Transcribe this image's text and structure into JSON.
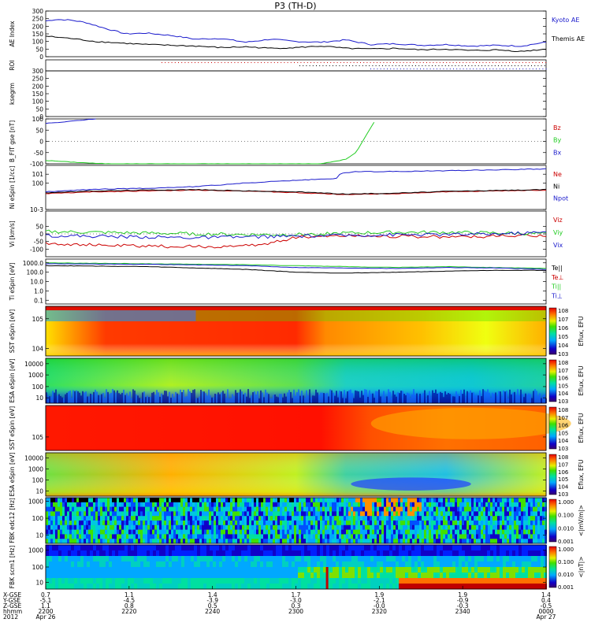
{
  "title": "P3 (TH-D)",
  "chart_data": [
    {
      "type": "line",
      "ylabel": "AE Index",
      "ylim": [
        0,
        300
      ],
      "yticks": [
        0,
        50,
        100,
        150,
        200,
        250,
        300
      ],
      "series": [
        {
          "name": "Kyoto AE",
          "color": "#1a1acc",
          "x": [
            0,
            0.02,
            0.05,
            0.08,
            0.12,
            0.16,
            0.2,
            0.25,
            0.3,
            0.35,
            0.4,
            0.45,
            0.5,
            0.55,
            0.6,
            0.65,
            0.7,
            0.75,
            0.8,
            0.85,
            0.9,
            0.95,
            1.0
          ],
          "values": [
            235,
            245,
            240,
            225,
            185,
            150,
            155,
            140,
            115,
            120,
            95,
            115,
            100,
            95,
            110,
            80,
            85,
            75,
            80,
            70,
            75,
            70,
            95
          ]
        },
        {
          "name": "Themis AE",
          "color": "#000000",
          "x": [
            0,
            0.05,
            0.1,
            0.15,
            0.2,
            0.25,
            0.3,
            0.35,
            0.4,
            0.45,
            0.5,
            0.55,
            0.6,
            0.65,
            0.7,
            0.75,
            0.8,
            0.85,
            0.9,
            0.95,
            1.0
          ],
          "values": [
            135,
            120,
            100,
            90,
            80,
            75,
            70,
            60,
            65,
            55,
            60,
            70,
            55,
            50,
            55,
            45,
            50,
            40,
            45,
            35,
            50
          ]
        }
      ]
    },
    {
      "type": "scatter",
      "ylabel": "ROI",
      "yticks": []
    },
    {
      "type": "line",
      "ylabel": "ksegrm",
      "ylim": [
        0,
        300
      ],
      "yticks": [
        0,
        50,
        100,
        150,
        200,
        250,
        300
      ],
      "series": []
    },
    {
      "type": "line",
      "ylabel": "B_FIT gse [nT]",
      "ylim": [
        -100,
        100
      ],
      "yticks": [
        -100,
        -50,
        0,
        50,
        100
      ],
      "series": [
        {
          "name": "Bz",
          "color": "#cc0000",
          "x": [],
          "values": []
        },
        {
          "name": "By",
          "color": "#22cc22",
          "x": [
            0,
            0.05,
            0.1,
            0.13,
            0.2,
            0.4,
            0.5,
            0.55,
            0.6,
            0.62,
            0.66
          ],
          "values": [
            -85,
            -92,
            -98,
            -100,
            -100,
            -100,
            -100,
            -100,
            -80,
            -50,
            100
          ]
        },
        {
          "name": "Bx",
          "color": "#1a1acc",
          "x": [
            0,
            0.03,
            0.06,
            0.1
          ],
          "values": [
            80,
            85,
            92,
            100
          ]
        }
      ]
    },
    {
      "type": "line",
      "ylabel": "Ni eSpin [1/cc]",
      "ylim": [
        -3,
        2
      ],
      "log": true,
      "ytick_labels": [
        "10^-3",
        "10^0",
        "10^1"
      ],
      "series": [
        {
          "name": "Ne",
          "color": "#cc0000",
          "x": [
            0,
            0.1,
            0.2,
            0.3,
            0.4,
            0.5,
            0.6,
            0.7,
            0.8,
            0.9,
            1.0
          ],
          "values": [
            -1.2,
            -1.0,
            -0.9,
            -0.8,
            -0.9,
            -1.1,
            -1.3,
            -1.2,
            -1.0,
            -0.9,
            -0.8
          ]
        },
        {
          "name": "Ni",
          "color": "#000000",
          "x": [
            0,
            0.1,
            0.2,
            0.3,
            0.4,
            0.5,
            0.6,
            0.7,
            0.8,
            0.9,
            1.0
          ],
          "values": [
            -1.1,
            -0.9,
            -0.8,
            -0.75,
            -0.9,
            -1.0,
            -1.25,
            -1.15,
            -0.95,
            -0.85,
            -0.75
          ]
        },
        {
          "name": "Npot",
          "color": "#1a1acc",
          "x": [
            0,
            0.1,
            0.2,
            0.3,
            0.35,
            0.4,
            0.5,
            0.58,
            0.59,
            0.62,
            0.7,
            0.8,
            0.9,
            1.0
          ],
          "values": [
            -1.0,
            -0.7,
            -0.6,
            -0.4,
            -0.2,
            0.0,
            0.3,
            0.5,
            1.1,
            1.3,
            1.3,
            1.4,
            1.5,
            1.6
          ]
        }
      ]
    },
    {
      "type": "line",
      "ylabel": "Vi [km/s]",
      "ylim": [
        -150,
        150
      ],
      "yticks": [
        -100,
        -50,
        0,
        50
      ],
      "series": [
        {
          "name": "Viz",
          "color": "#cc0000",
          "x": [
            0,
            0.1,
            0.2,
            0.3,
            0.4,
            0.45,
            0.5,
            0.55,
            0.6,
            0.7,
            0.8,
            0.9,
            1.0
          ],
          "values": [
            -60,
            -75,
            -80,
            -85,
            -80,
            -60,
            -20,
            -15,
            -10,
            -15,
            -20,
            -15,
            -10
          ]
        },
        {
          "name": "Viy",
          "color": "#22cc22",
          "x": [
            0,
            0.1,
            0.2,
            0.3,
            0.4,
            0.5,
            0.6,
            0.7,
            0.8,
            0.9,
            1.0
          ],
          "values": [
            15,
            10,
            5,
            0,
            -5,
            -5,
            5,
            10,
            10,
            5,
            0
          ]
        },
        {
          "name": "Vix",
          "color": "#1a1acc",
          "x": [
            0,
            0.1,
            0.2,
            0.3,
            0.4,
            0.5,
            0.6,
            0.7,
            0.8,
            0.9,
            1.0
          ],
          "values": [
            -10,
            -15,
            -20,
            -25,
            -20,
            -15,
            -10,
            -5,
            -5,
            0,
            10
          ]
        }
      ]
    },
    {
      "type": "line",
      "ylabel": "Ti eSpin [eV]",
      "log": true,
      "ytick_labels": [
        "1000.0",
        "100.0",
        "10.0",
        "1.0",
        "0.1"
      ],
      "series": [
        {
          "name": "Te||",
          "color": "#000000",
          "x": [
            0,
            0.2,
            0.4,
            0.5,
            0.6,
            0.7,
            0.8,
            0.9,
            1.0
          ],
          "values": [
            2.7,
            2.6,
            2.3,
            2.0,
            1.9,
            2.0,
            2.1,
            2.2,
            2.2
          ]
        },
        {
          "name": "Te⊥",
          "color": "#cc0000",
          "x": [],
          "values": []
        },
        {
          "name": "Ti||",
          "color": "#22cc22",
          "x": [
            0,
            0.2,
            0.4,
            0.5,
            0.6,
            0.7,
            0.8,
            0.9,
            1.0
          ],
          "values": [
            3.0,
            2.9,
            2.8,
            2.7,
            2.6,
            2.5,
            2.6,
            2.5,
            2.4
          ]
        },
        {
          "name": "Ti⊥",
          "color": "#1a1acc",
          "x": [
            0,
            0.2,
            0.4,
            0.5,
            0.6,
            0.7,
            0.8,
            0.9,
            1.0
          ],
          "values": [
            2.9,
            2.85,
            2.7,
            2.5,
            2.45,
            2.4,
            2.5,
            2.45,
            2.3
          ]
        }
      ]
    },
    {
      "type": "heatmap",
      "ylabel": "SST eSpin [eV]",
      "colorbar_label": "Eflux, EFU",
      "ytick_labels": [
        "10^5",
        "10^4"
      ],
      "colorbar_ticks": [
        "10^8",
        "10^7",
        "10^6",
        "10^5",
        "10^4",
        "10^3"
      ]
    },
    {
      "type": "heatmap",
      "ylabel": "ESA eSpin [eV]",
      "colorbar_label": "Eflux, EFU",
      "ytick_labels": [
        "10000",
        "1000",
        "100",
        "10"
      ],
      "colorbar_ticks": [
        "10^8",
        "10^7",
        "10^6",
        "10^5",
        "10^4",
        "10^3"
      ]
    },
    {
      "type": "heatmap",
      "ylabel": "SST eSpin [eV]",
      "colorbar_label": "Eflux, EFU",
      "ytick_labels": [
        "10^5"
      ],
      "colorbar_ticks": [
        "10^8",
        "10^7",
        "10^6",
        "10^5",
        "10^4",
        "10^3"
      ]
    },
    {
      "type": "heatmap",
      "ylabel": "ESA eSpin [eV]",
      "colorbar_label": "Eflux, EFU",
      "ytick_labels": [
        "10000",
        "1000",
        "100",
        "10"
      ],
      "colorbar_ticks": [
        "10^8",
        "10^7",
        "10^6",
        "10^5",
        "10^4",
        "10^3"
      ]
    },
    {
      "type": "heatmap",
      "ylabel": "FBK edc12 [Hz]",
      "colorbar_label": "<|mV/m|>",
      "ytick_labels": [
        "1000",
        "100",
        "10"
      ],
      "colorbar_ticks": [
        "1.000",
        "0.100",
        "0.010",
        "0.001"
      ]
    },
    {
      "type": "heatmap",
      "ylabel": "FBK scm1 [Hz]",
      "colorbar_label": "<|nT|>",
      "ytick_labels": [
        "1000",
        "100",
        "10"
      ],
      "colorbar_ticks": [
        "1.000",
        "0.100",
        "0.010",
        "0.001"
      ]
    }
  ],
  "xaxis": {
    "row_labels": [
      "X-GSE",
      "Y-GSE",
      "Z-GSE",
      "hhmm",
      "2012"
    ],
    "ticks": [
      {
        "r": [
          "0.7",
          "-5.1",
          "1.1",
          "2200",
          "Apr 26"
        ]
      },
      {
        "r": [
          "1.1",
          "-4.5",
          "0.8",
          "2220",
          ""
        ]
      },
      {
        "r": [
          "1.4",
          "-3.9",
          "0.5",
          "2240",
          ""
        ]
      },
      {
        "r": [
          "1.7",
          "-3.0",
          "0.3",
          "2300",
          ""
        ]
      },
      {
        "r": [
          "1.9",
          "-2.1",
          "-0.0",
          "2320",
          ""
        ]
      },
      {
        "r": [
          "1.9",
          "-0.9",
          "-0.3",
          "2340",
          ""
        ]
      },
      {
        "r": [
          "1.4",
          "0.4",
          "-0.5",
          "0000",
          "Apr 27"
        ]
      }
    ]
  },
  "colors": {
    "red": "#cc0000",
    "green": "#22cc22",
    "blue": "#1a1acc"
  }
}
